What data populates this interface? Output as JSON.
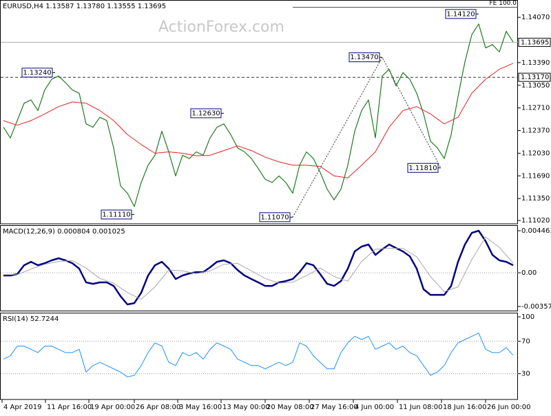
{
  "header": {
    "symbol_info": "EURUSD,H4  1.13587 1.13780 1.13555 1.13695",
    "watermark": "ActionForex.com"
  },
  "chart_data": [
    {
      "type": "line",
      "xlim": [
        -0.5,
        74.7
      ],
      "ylim": [
        1.1097,
        1.1433
      ],
      "yticks": [
        {
          "value": 1.1407,
          "label": "1.14070"
        },
        {
          "value": 1.1339,
          "label": "1.13390"
        },
        {
          "value": 1.1305,
          "label": "1.13050"
        },
        {
          "value": 1.1271,
          "label": "1.12710"
        },
        {
          "value": 1.1237,
          "label": "1.12370"
        },
        {
          "value": 1.1203,
          "label": "1.12030"
        },
        {
          "value": 1.1169,
          "label": "1.11690"
        },
        {
          "value": 1.1135,
          "label": "1.11350"
        },
        {
          "value": 1.1102,
          "label": "1.11020"
        }
      ],
      "grid": false,
      "series": [
        {
          "color": "#1f7a1f",
          "line_width": 1.2,
          "x": [
            0,
            1,
            2,
            3,
            4,
            5,
            6,
            7,
            8,
            9,
            10,
            11,
            12,
            13,
            14,
            15,
            16,
            17,
            18,
            19,
            20,
            21,
            22,
            23,
            24,
            25,
            26,
            27,
            28,
            29,
            30,
            31,
            32,
            33,
            34,
            35,
            36,
            37,
            38,
            39,
            40,
            41,
            42,
            43,
            44,
            45,
            46,
            47,
            48,
            49,
            50,
            51,
            52,
            53,
            54,
            55,
            56,
            57,
            58,
            59,
            60,
            61,
            62,
            63,
            64,
            65,
            66,
            67,
            68,
            69,
            70,
            71,
            72,
            73,
            74
          ],
          "values": [
            1.1242,
            1.1226,
            1.1252,
            1.1278,
            1.1283,
            1.1267,
            1.1298,
            1.1314,
            1.1319,
            1.1309,
            1.1298,
            1.1293,
            1.1247,
            1.1242,
            1.1257,
            1.1252,
            1.1211,
            1.1154,
            1.1143,
            1.1123,
            1.1159,
            1.1185,
            1.12,
            1.1236,
            1.1205,
            1.1169,
            1.12,
            1.1195,
            1.1205,
            1.12,
            1.1226,
            1.1242,
            1.1247,
            1.1231,
            1.1211,
            1.1205,
            1.1195,
            1.118,
            1.1164,
            1.1159,
            1.1169,
            1.1159,
            1.1143,
            1.1185,
            1.1205,
            1.1195,
            1.1174,
            1.1149,
            1.1133,
            1.1149,
            1.1185,
            1.1236,
            1.1267,
            1.1283,
            1.1226,
            1.1319,
            1.1329,
            1.1304,
            1.1324,
            1.1314,
            1.1293,
            1.1262,
            1.1221,
            1.1211,
            1.1195,
            1.1231,
            1.1288,
            1.134,
            1.1381,
            1.1397,
            1.1361,
            1.1366,
            1.1355,
            1.1386,
            1.137
          ]
        },
        {
          "color": "#e02020",
          "line_width": 1,
          "x": [
            0,
            2,
            4,
            6,
            8,
            10,
            12,
            14,
            16,
            18,
            20,
            22,
            24,
            26,
            28,
            30,
            32,
            34,
            36,
            38,
            40,
            42,
            44,
            46,
            48,
            50,
            52,
            54,
            56,
            58,
            60,
            62,
            64,
            66,
            68,
            70,
            72,
            74
          ],
          "values": [
            1.1252,
            1.1245,
            1.1252,
            1.1262,
            1.1273,
            1.128,
            1.1278,
            1.1267,
            1.1252,
            1.1231,
            1.1216,
            1.1203,
            1.1205,
            1.1203,
            1.1199,
            1.12,
            1.1207,
            1.1214,
            1.1207,
            1.1197,
            1.119,
            1.1185,
            1.1185,
            1.1183,
            1.1169,
            1.1166,
            1.1185,
            1.1205,
            1.1242,
            1.1267,
            1.1273,
            1.1262,
            1.1247,
            1.1257,
            1.1293,
            1.1314,
            1.1329,
            1.1338
          ]
        }
      ],
      "trendline": {
        "color": "#333333",
        "x": [
          42,
          55,
          63.5
        ],
        "values": [
          1.1107,
          1.1347,
          1.1181
        ]
      },
      "annotations": [
        {
          "x": 69,
          "value": 1.1412,
          "label": "1.14120"
        },
        {
          "x": 55,
          "value": 1.1347,
          "label": "1.13470"
        },
        {
          "x": 7.5,
          "value": 1.1324,
          "label": "1.13240"
        },
        {
          "x": 32,
          "value": 1.1263,
          "label": "1.12630"
        },
        {
          "x": 19,
          "value": 1.1111,
          "label": "1.11110"
        },
        {
          "x": 42,
          "value": 1.1107,
          "label": "1.11070"
        },
        {
          "x": 63.5,
          "value": 1.1181,
          "label": "1.11810"
        }
      ],
      "levels": [
        {
          "value": 1.13695,
          "label": "1.13695",
          "style": "solid"
        },
        {
          "value": 1.1317,
          "label": "1.13170",
          "style": "dashed"
        },
        {
          "value": 1.1422,
          "label": "FE 100.0",
          "style": "fe"
        }
      ]
    },
    {
      "type": "line",
      "title": "MACD(12,26,9) 0.000804 0.001025",
      "xlim": [
        -0.5,
        74.7
      ],
      "ylim": [
        -0.003576,
        0.004463
      ],
      "yticks": [
        0.004463,
        {
          "value": 0,
          "label": "0.00"
        },
        -0.003576
      ],
      "grid": true,
      "series": [
        {
          "color": "#000080",
          "line_width": 2.5,
          "x": [
            0,
            1,
            2,
            3,
            4,
            5,
            6,
            7,
            8,
            9,
            10,
            11,
            12,
            13,
            14,
            15,
            16,
            17,
            18,
            19,
            20,
            21,
            22,
            23,
            24,
            25,
            26,
            27,
            28,
            29,
            30,
            31,
            32,
            33,
            34,
            35,
            36,
            37,
            38,
            39,
            40,
            41,
            42,
            43,
            44,
            45,
            46,
            47,
            48,
            49,
            50,
            51,
            52,
            53,
            54,
            55,
            56,
            57,
            58,
            59,
            60,
            61,
            62,
            63,
            64,
            65,
            66,
            67,
            68,
            69,
            70,
            71,
            72,
            73,
            74
          ],
          "values": [
            -0.00029,
            -0.00029,
            -0.00015,
            0.0008,
            0.00117,
            0.0008,
            0.00102,
            0.00132,
            0.00154,
            0.00132,
            0.00102,
            0.00044,
            -0.00102,
            -0.00117,
            -0.00102,
            -0.00102,
            -0.00139,
            -0.00249,
            -0.00336,
            -0.00322,
            -0.00212,
            -0.00029,
            0.0008,
            0.00117,
            0.00044,
            -0.00066,
            -0.00029,
            -7e-05,
            7e-05,
            7e-05,
            0.00058,
            0.00117,
            0.00132,
            0.00102,
            0.00029,
            -0.00029,
            -0.00066,
            -0.00102,
            -0.00139,
            -0.00139,
            -0.00102,
            -0.00088,
            -0.00066,
            7e-05,
            0.00102,
            0.0008,
            -0.00015,
            -0.00117,
            -0.00139,
            -0.00088,
            0.00044,
            0.00227,
            0.00278,
            0.003,
            0.0019,
            0.00249,
            0.003,
            0.00263,
            0.00227,
            0.00175,
            0.00044,
            -0.00175,
            -0.00234,
            -0.00234,
            -0.00234,
            -0.00139,
            0.00117,
            0.003,
            0.00424,
            0.00446,
            0.00336,
            0.0019,
            0.00132,
            0.00117,
            0.000804
          ]
        },
        {
          "color": "#a8a8a8",
          "line_width": 1,
          "x": [
            0,
            2,
            4,
            6,
            8,
            10,
            12,
            14,
            16,
            18,
            20,
            22,
            24,
            26,
            28,
            30,
            32,
            34,
            36,
            38,
            40,
            42,
            44,
            46,
            48,
            50,
            52,
            54,
            56,
            58,
            60,
            62,
            64,
            66,
            68,
            70,
            72,
            74
          ],
          "values": [
            -0.0002,
            -0.0002,
            0.0004,
            0.0009,
            0.0012,
            0.0013,
            0.0005,
            -0.0006,
            -0.0011,
            -0.0021,
            -0.0028,
            -0.0015,
            0.0003,
            0.0002,
            -0.0001,
            0.0002,
            0.0009,
            0.001,
            0.0002,
            -0.0006,
            -0.0011,
            -0.001,
            -0.0003,
            0.0005,
            -0.0004,
            -0.0009,
            0.0012,
            0.0025,
            0.0026,
            0.0026,
            0.0017,
            -0.0004,
            -0.002,
            -0.0015,
            0.0014,
            0.0038,
            0.0027,
            0.001025
          ]
        }
      ]
    },
    {
      "type": "line",
      "title": "RSI(14) 52.7244",
      "xlim": [
        -0.5,
        74.7
      ],
      "ylim": [
        0,
        100
      ],
      "yticks": [
        100,
        70,
        30
      ],
      "grid": true,
      "xticks": [
        {
          "value": -0.2,
          "label": "4 Apr 2019"
        },
        {
          "value": 6.1,
          "label": "11 Apr 16:00"
        },
        {
          "value": 12.4,
          "label": "19 Apr 00:00"
        },
        {
          "value": 19,
          "label": "26 Apr 08:00"
        },
        {
          "value": 25.3,
          "label": "3 May 16:00"
        },
        {
          "value": 31.6,
          "label": "13 May 00:00"
        },
        {
          "value": 38,
          "label": "20 May 08:00"
        },
        {
          "value": 44.4,
          "label": "27 May 16:00"
        },
        {
          "value": 50.8,
          "label": "4 Jun 00:00"
        },
        {
          "value": 57.2,
          "label": "11 Jun 08:00"
        },
        {
          "value": 63.6,
          "label": "18 Jun 16:00"
        },
        {
          "value": 70,
          "label": "26 Jun 00:00"
        }
      ],
      "series": [
        {
          "color": "#1e90ff",
          "line_width": 1,
          "x": [
            0,
            1,
            2,
            3,
            4,
            5,
            6,
            7,
            8,
            9,
            10,
            11,
            12,
            13,
            14,
            15,
            16,
            17,
            18,
            19,
            20,
            21,
            22,
            23,
            24,
            25,
            26,
            27,
            28,
            29,
            30,
            31,
            32,
            33,
            34,
            35,
            36,
            37,
            38,
            39,
            40,
            41,
            42,
            43,
            44,
            45,
            46,
            47,
            48,
            49,
            50,
            51,
            52,
            53,
            54,
            55,
            56,
            57,
            58,
            59,
            60,
            61,
            62,
            63,
            64,
            65,
            66,
            67,
            68,
            69,
            70,
            71,
            72,
            73,
            74
          ],
          "values": [
            48,
            52,
            64,
            64,
            60,
            56,
            64,
            64,
            60,
            56,
            56,
            60,
            32,
            40,
            44,
            40,
            36,
            32,
            26,
            28,
            40,
            56,
            68,
            64,
            44,
            40,
            56,
            52,
            56,
            48,
            60,
            68,
            64,
            60,
            48,
            44,
            40,
            40,
            36,
            40,
            44,
            40,
            44,
            68,
            64,
            52,
            44,
            36,
            36,
            56,
            68,
            76,
            72,
            76,
            60,
            64,
            68,
            60,
            64,
            56,
            52,
            40,
            28,
            32,
            40,
            56,
            68,
            72,
            76,
            80,
            60,
            56,
            56,
            62,
            52.7244
          ]
        }
      ]
    }
  ]
}
